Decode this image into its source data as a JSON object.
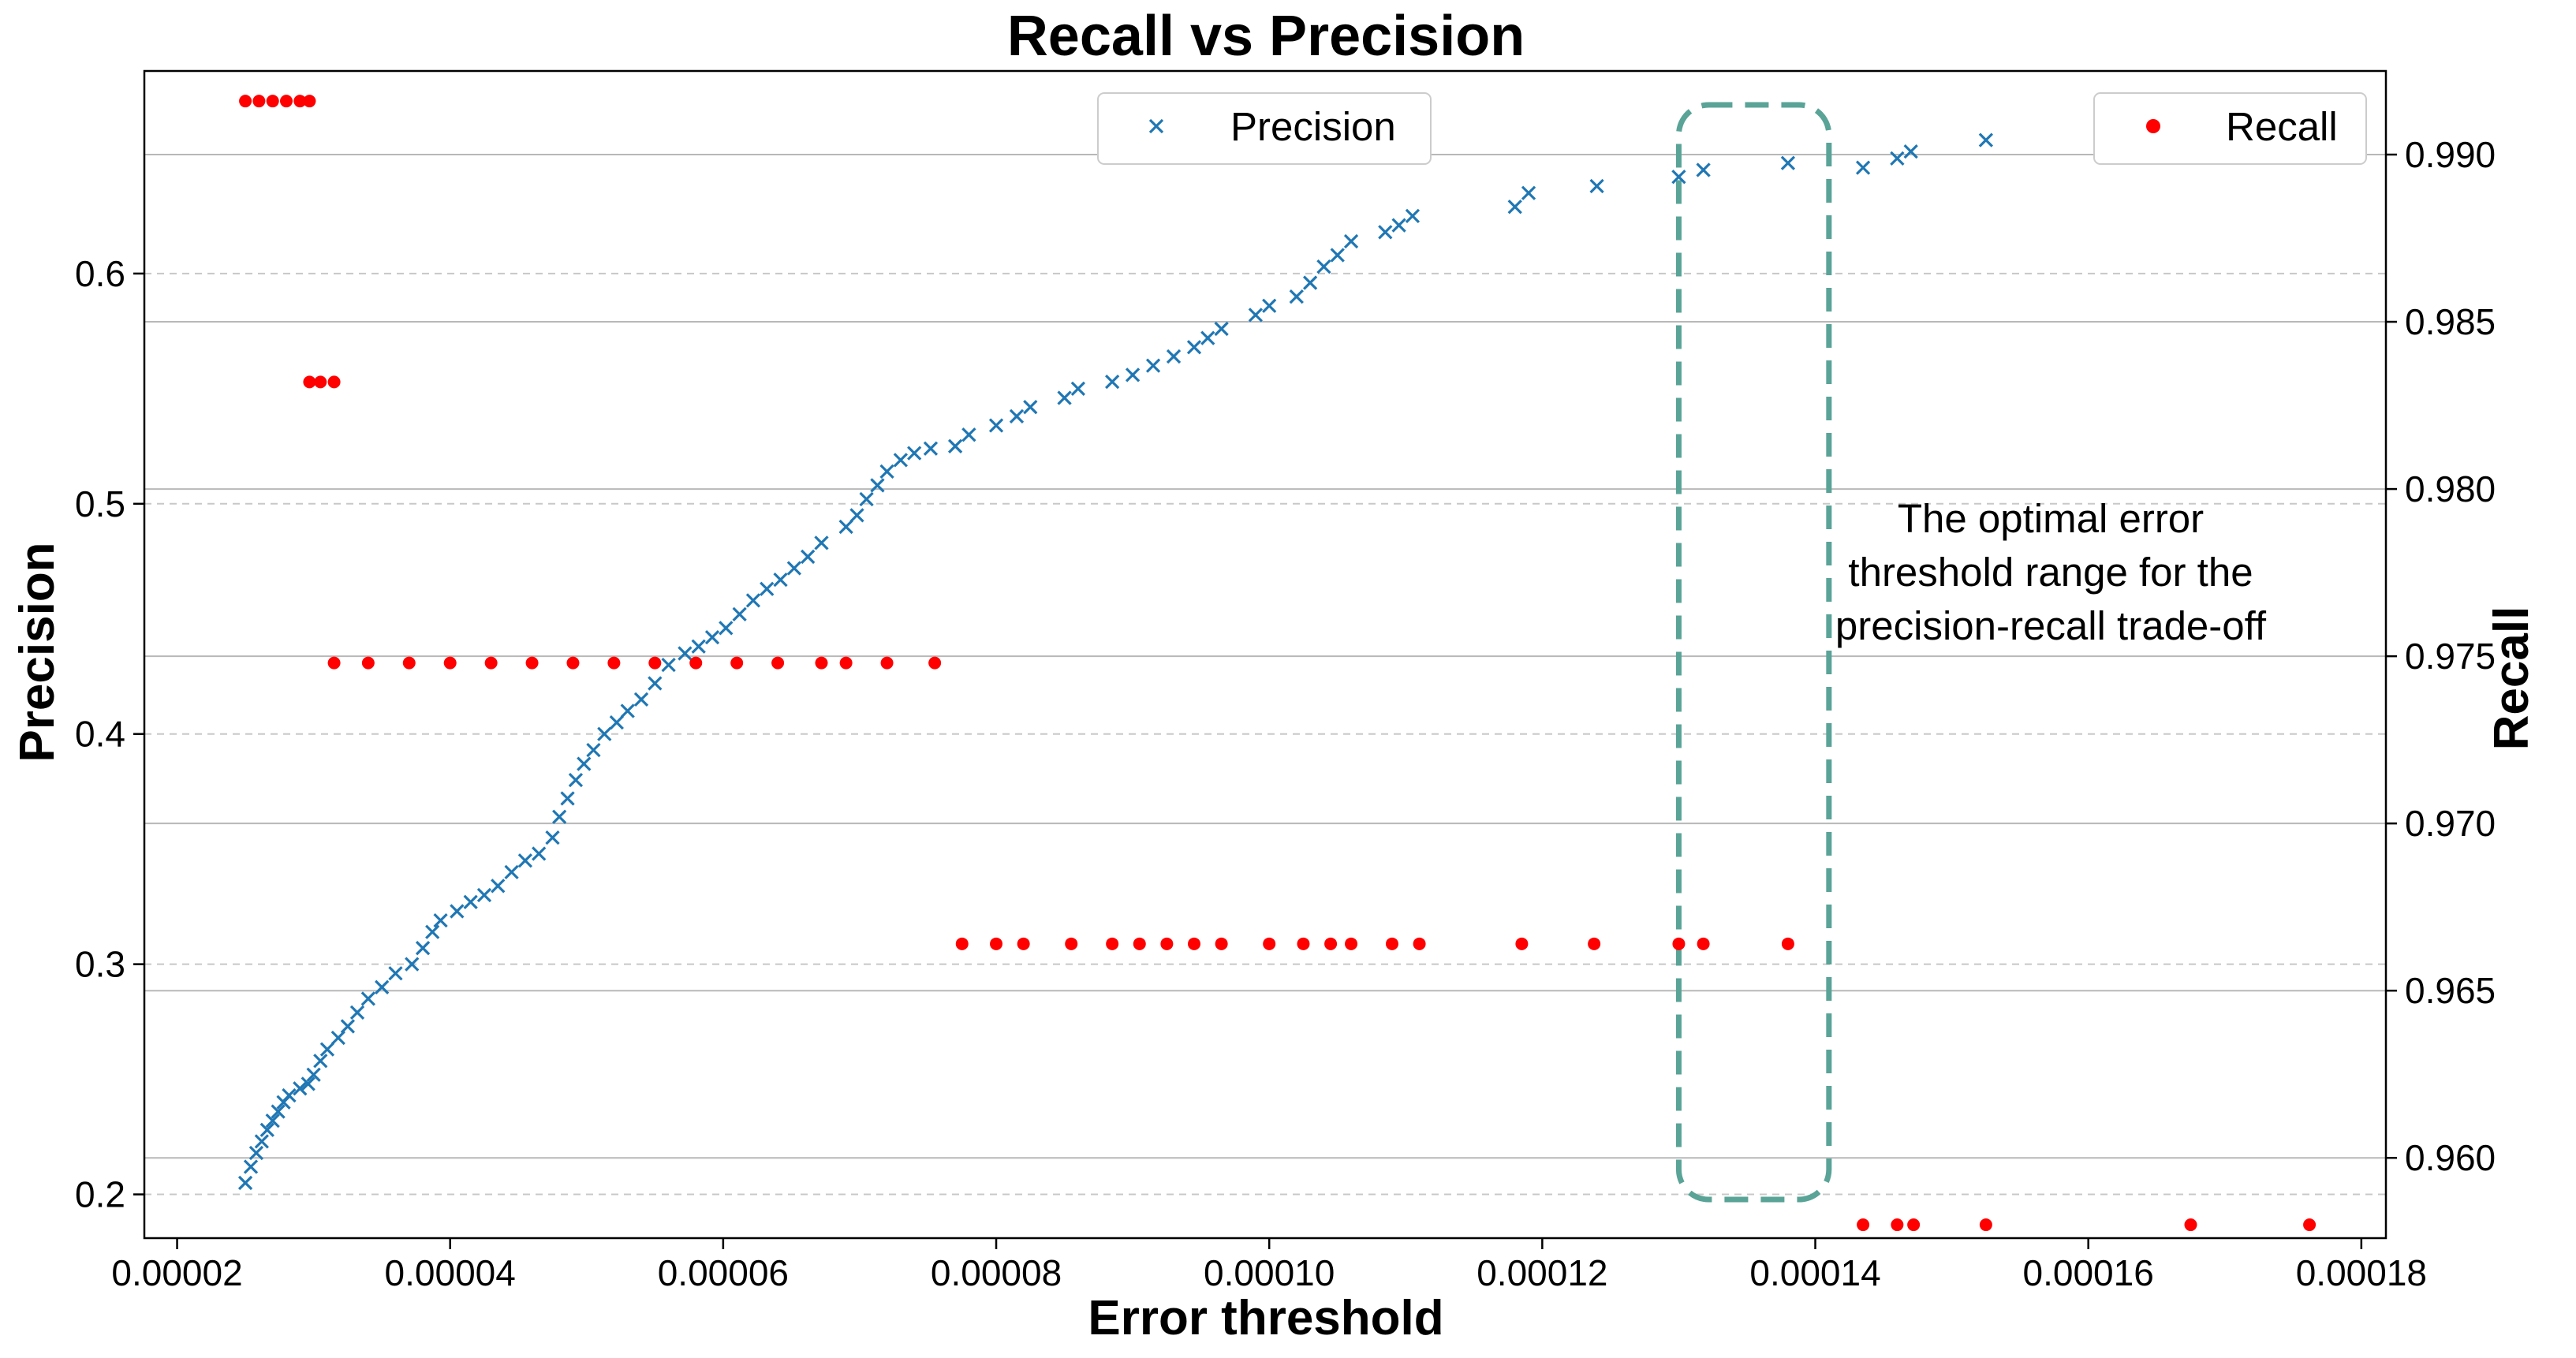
{
  "chart_data": {
    "type": "scatter",
    "title": "Recall vs Precision",
    "xlabel": "Error threshold",
    "ylabel_left": "Precision",
    "ylabel_right": "Recall",
    "xlim": [
      1.76e-05,
      0.0001818
    ],
    "ylim_left": [
      0.181,
      0.688
    ],
    "ylim_right": [
      0.9576,
      0.9925
    ],
    "x_ticks": [
      {
        "value": 2e-05,
        "label": "0.00002"
      },
      {
        "value": 4e-05,
        "label": "0.00004"
      },
      {
        "value": 6e-05,
        "label": "0.00006"
      },
      {
        "value": 8e-05,
        "label": "0.00008"
      },
      {
        "value": 0.0001,
        "label": "0.00010"
      },
      {
        "value": 0.00012,
        "label": "0.00012"
      },
      {
        "value": 0.00014,
        "label": "0.00014"
      },
      {
        "value": 0.00016,
        "label": "0.00016"
      },
      {
        "value": 0.00018,
        "label": "0.00018"
      }
    ],
    "y_ticks_left": [
      {
        "value": 0.2,
        "label": "0.2"
      },
      {
        "value": 0.3,
        "label": "0.3"
      },
      {
        "value": 0.4,
        "label": "0.4"
      },
      {
        "value": 0.5,
        "label": "0.5"
      },
      {
        "value": 0.6,
        "label": "0.6"
      }
    ],
    "y_ticks_right": [
      {
        "value": 0.96,
        "label": "0.960"
      },
      {
        "value": 0.965,
        "label": "0.965"
      },
      {
        "value": 0.97,
        "label": "0.970"
      },
      {
        "value": 0.975,
        "label": "0.975"
      },
      {
        "value": 0.98,
        "label": "0.980"
      },
      {
        "value": 0.985,
        "label": "0.985"
      },
      {
        "value": 0.99,
        "label": "0.990"
      }
    ],
    "grid": true,
    "series": [
      {
        "name": "Precision",
        "axis": "left",
        "marker": "x",
        "color": "#1f77b4",
        "legend_position": "top-center",
        "points": [
          [
            2.5e-05,
            0.205
          ],
          [
            2.54e-05,
            0.212
          ],
          [
            2.58e-05,
            0.218
          ],
          [
            2.62e-05,
            0.223
          ],
          [
            2.66e-05,
            0.228
          ],
          [
            2.7e-05,
            0.232
          ],
          [
            2.74e-05,
            0.236
          ],
          [
            2.78e-05,
            0.24
          ],
          [
            2.82e-05,
            0.243
          ],
          [
            2.9e-05,
            0.246
          ],
          [
            2.96e-05,
            0.248
          ],
          [
            3e-05,
            0.252
          ],
          [
            3.05e-05,
            0.258
          ],
          [
            3.1e-05,
            0.263
          ],
          [
            3.18e-05,
            0.268
          ],
          [
            3.25e-05,
            0.273
          ],
          [
            3.32e-05,
            0.279
          ],
          [
            3.4e-05,
            0.285
          ],
          [
            3.5e-05,
            0.29
          ],
          [
            3.6e-05,
            0.296
          ],
          [
            3.72e-05,
            0.3
          ],
          [
            3.8e-05,
            0.307
          ],
          [
            3.87e-05,
            0.314
          ],
          [
            3.93e-05,
            0.319
          ],
          [
            4.05e-05,
            0.323
          ],
          [
            4.15e-05,
            0.327
          ],
          [
            4.25e-05,
            0.33
          ],
          [
            4.35e-05,
            0.334
          ],
          [
            4.45e-05,
            0.34
          ],
          [
            4.55e-05,
            0.345
          ],
          [
            4.65e-05,
            0.348
          ],
          [
            4.75e-05,
            0.355
          ],
          [
            4.8e-05,
            0.364
          ],
          [
            4.86e-05,
            0.372
          ],
          [
            4.92e-05,
            0.38
          ],
          [
            4.98e-05,
            0.387
          ],
          [
            5.05e-05,
            0.393
          ],
          [
            5.13e-05,
            0.4
          ],
          [
            5.22e-05,
            0.405
          ],
          [
            5.3e-05,
            0.41
          ],
          [
            5.4e-05,
            0.415
          ],
          [
            5.5e-05,
            0.422
          ],
          [
            5.6e-05,
            0.43
          ],
          [
            5.72e-05,
            0.435
          ],
          [
            5.82e-05,
            0.438
          ],
          [
            5.92e-05,
            0.442
          ],
          [
            6.02e-05,
            0.446
          ],
          [
            6.12e-05,
            0.452
          ],
          [
            6.22e-05,
            0.458
          ],
          [
            6.32e-05,
            0.463
          ],
          [
            6.42e-05,
            0.467
          ],
          [
            6.52e-05,
            0.472
          ],
          [
            6.62e-05,
            0.477
          ],
          [
            6.72e-05,
            0.483
          ],
          [
            6.9e-05,
            0.49
          ],
          [
            6.98e-05,
            0.495
          ],
          [
            7.05e-05,
            0.502
          ],
          [
            7.13e-05,
            0.508
          ],
          [
            7.2e-05,
            0.514
          ],
          [
            7.3e-05,
            0.519
          ],
          [
            7.4e-05,
            0.522
          ],
          [
            7.52e-05,
            0.524
          ],
          [
            7.7e-05,
            0.525
          ],
          [
            7.8e-05,
            0.53
          ],
          [
            8e-05,
            0.534
          ],
          [
            8.15e-05,
            0.538
          ],
          [
            8.25e-05,
            0.542
          ],
          [
            8.5e-05,
            0.546
          ],
          [
            8.6e-05,
            0.55
          ],
          [
            8.85e-05,
            0.553
          ],
          [
            9e-05,
            0.556
          ],
          [
            9.15e-05,
            0.56
          ],
          [
            9.3e-05,
            0.564
          ],
          [
            9.45e-05,
            0.568
          ],
          [
            9.55e-05,
            0.572
          ],
          [
            9.65e-05,
            0.576
          ],
          [
            9.9e-05,
            0.582
          ],
          [
            0.0001,
            0.586
          ],
          [
            0.000102,
            0.59
          ],
          [
            0.000103,
            0.596
          ],
          [
            0.000104,
            0.603
          ],
          [
            0.000105,
            0.608
          ],
          [
            0.000106,
            0.614
          ],
          [
            0.0001085,
            0.618
          ],
          [
            0.0001095,
            0.621
          ],
          [
            0.0001105,
            0.625
          ],
          [
            0.000118,
            0.629
          ],
          [
            0.000119,
            0.635
          ],
          [
            0.000124,
            0.638
          ],
          [
            0.00013,
            0.642
          ],
          [
            0.0001318,
            0.645
          ],
          [
            0.000138,
            0.648
          ],
          [
            0.0001435,
            0.646
          ],
          [
            0.000146,
            0.65
          ],
          [
            0.000147,
            0.653
          ],
          [
            0.0001525,
            0.658
          ]
        ]
      },
      {
        "name": "Recall",
        "axis": "right",
        "marker": "o",
        "color": "#ff0000",
        "legend_position": "top-right",
        "points": [
          [
            2.5e-05,
            0.9916
          ],
          [
            2.6e-05,
            0.9916
          ],
          [
            2.7e-05,
            0.9916
          ],
          [
            2.8e-05,
            0.9916
          ],
          [
            2.9e-05,
            0.9916
          ],
          [
            2.97e-05,
            0.9916
          ],
          [
            2.97e-05,
            0.9832
          ],
          [
            3.05e-05,
            0.9832
          ],
          [
            3.15e-05,
            0.9832
          ],
          [
            3.15e-05,
            0.9748
          ],
          [
            3.4e-05,
            0.9748
          ],
          [
            3.7e-05,
            0.9748
          ],
          [
            4e-05,
            0.9748
          ],
          [
            4.3e-05,
            0.9748
          ],
          [
            4.6e-05,
            0.9748
          ],
          [
            4.9e-05,
            0.9748
          ],
          [
            5.2e-05,
            0.9748
          ],
          [
            5.5e-05,
            0.9748
          ],
          [
            5.8e-05,
            0.9748
          ],
          [
            6.1e-05,
            0.9748
          ],
          [
            6.4e-05,
            0.9748
          ],
          [
            6.72e-05,
            0.9748
          ],
          [
            6.9e-05,
            0.9748
          ],
          [
            7.2e-05,
            0.9748
          ],
          [
            7.55e-05,
            0.9748
          ],
          [
            7.75e-05,
            0.9664
          ],
          [
            8e-05,
            0.9664
          ],
          [
            8.2e-05,
            0.9664
          ],
          [
            8.55e-05,
            0.9664
          ],
          [
            8.85e-05,
            0.9664
          ],
          [
            9.05e-05,
            0.9664
          ],
          [
            9.25e-05,
            0.9664
          ],
          [
            9.45e-05,
            0.9664
          ],
          [
            9.65e-05,
            0.9664
          ],
          [
            0.0001,
            0.9664
          ],
          [
            0.0001025,
            0.9664
          ],
          [
            0.0001045,
            0.9664
          ],
          [
            0.000106,
            0.9664
          ],
          [
            0.000109,
            0.9664
          ],
          [
            0.000111,
            0.9664
          ],
          [
            0.0001185,
            0.9664
          ],
          [
            0.0001238,
            0.9664
          ],
          [
            0.00013,
            0.9664
          ],
          [
            0.0001318,
            0.9664
          ],
          [
            0.000138,
            0.9664
          ],
          [
            0.0001435,
            0.958
          ],
          [
            0.000146,
            0.958
          ],
          [
            0.0001472,
            0.958
          ],
          [
            0.0001525,
            0.958
          ],
          [
            0.0001675,
            0.958
          ],
          [
            0.0001762,
            0.958
          ]
        ]
      }
    ],
    "annotation": {
      "text_lines": [
        "The optimal error",
        "threshold range for the",
        "precision-recall trade-off"
      ],
      "color": "#5aa397",
      "x_range": [
        0.00013,
        0.000141
      ]
    }
  }
}
